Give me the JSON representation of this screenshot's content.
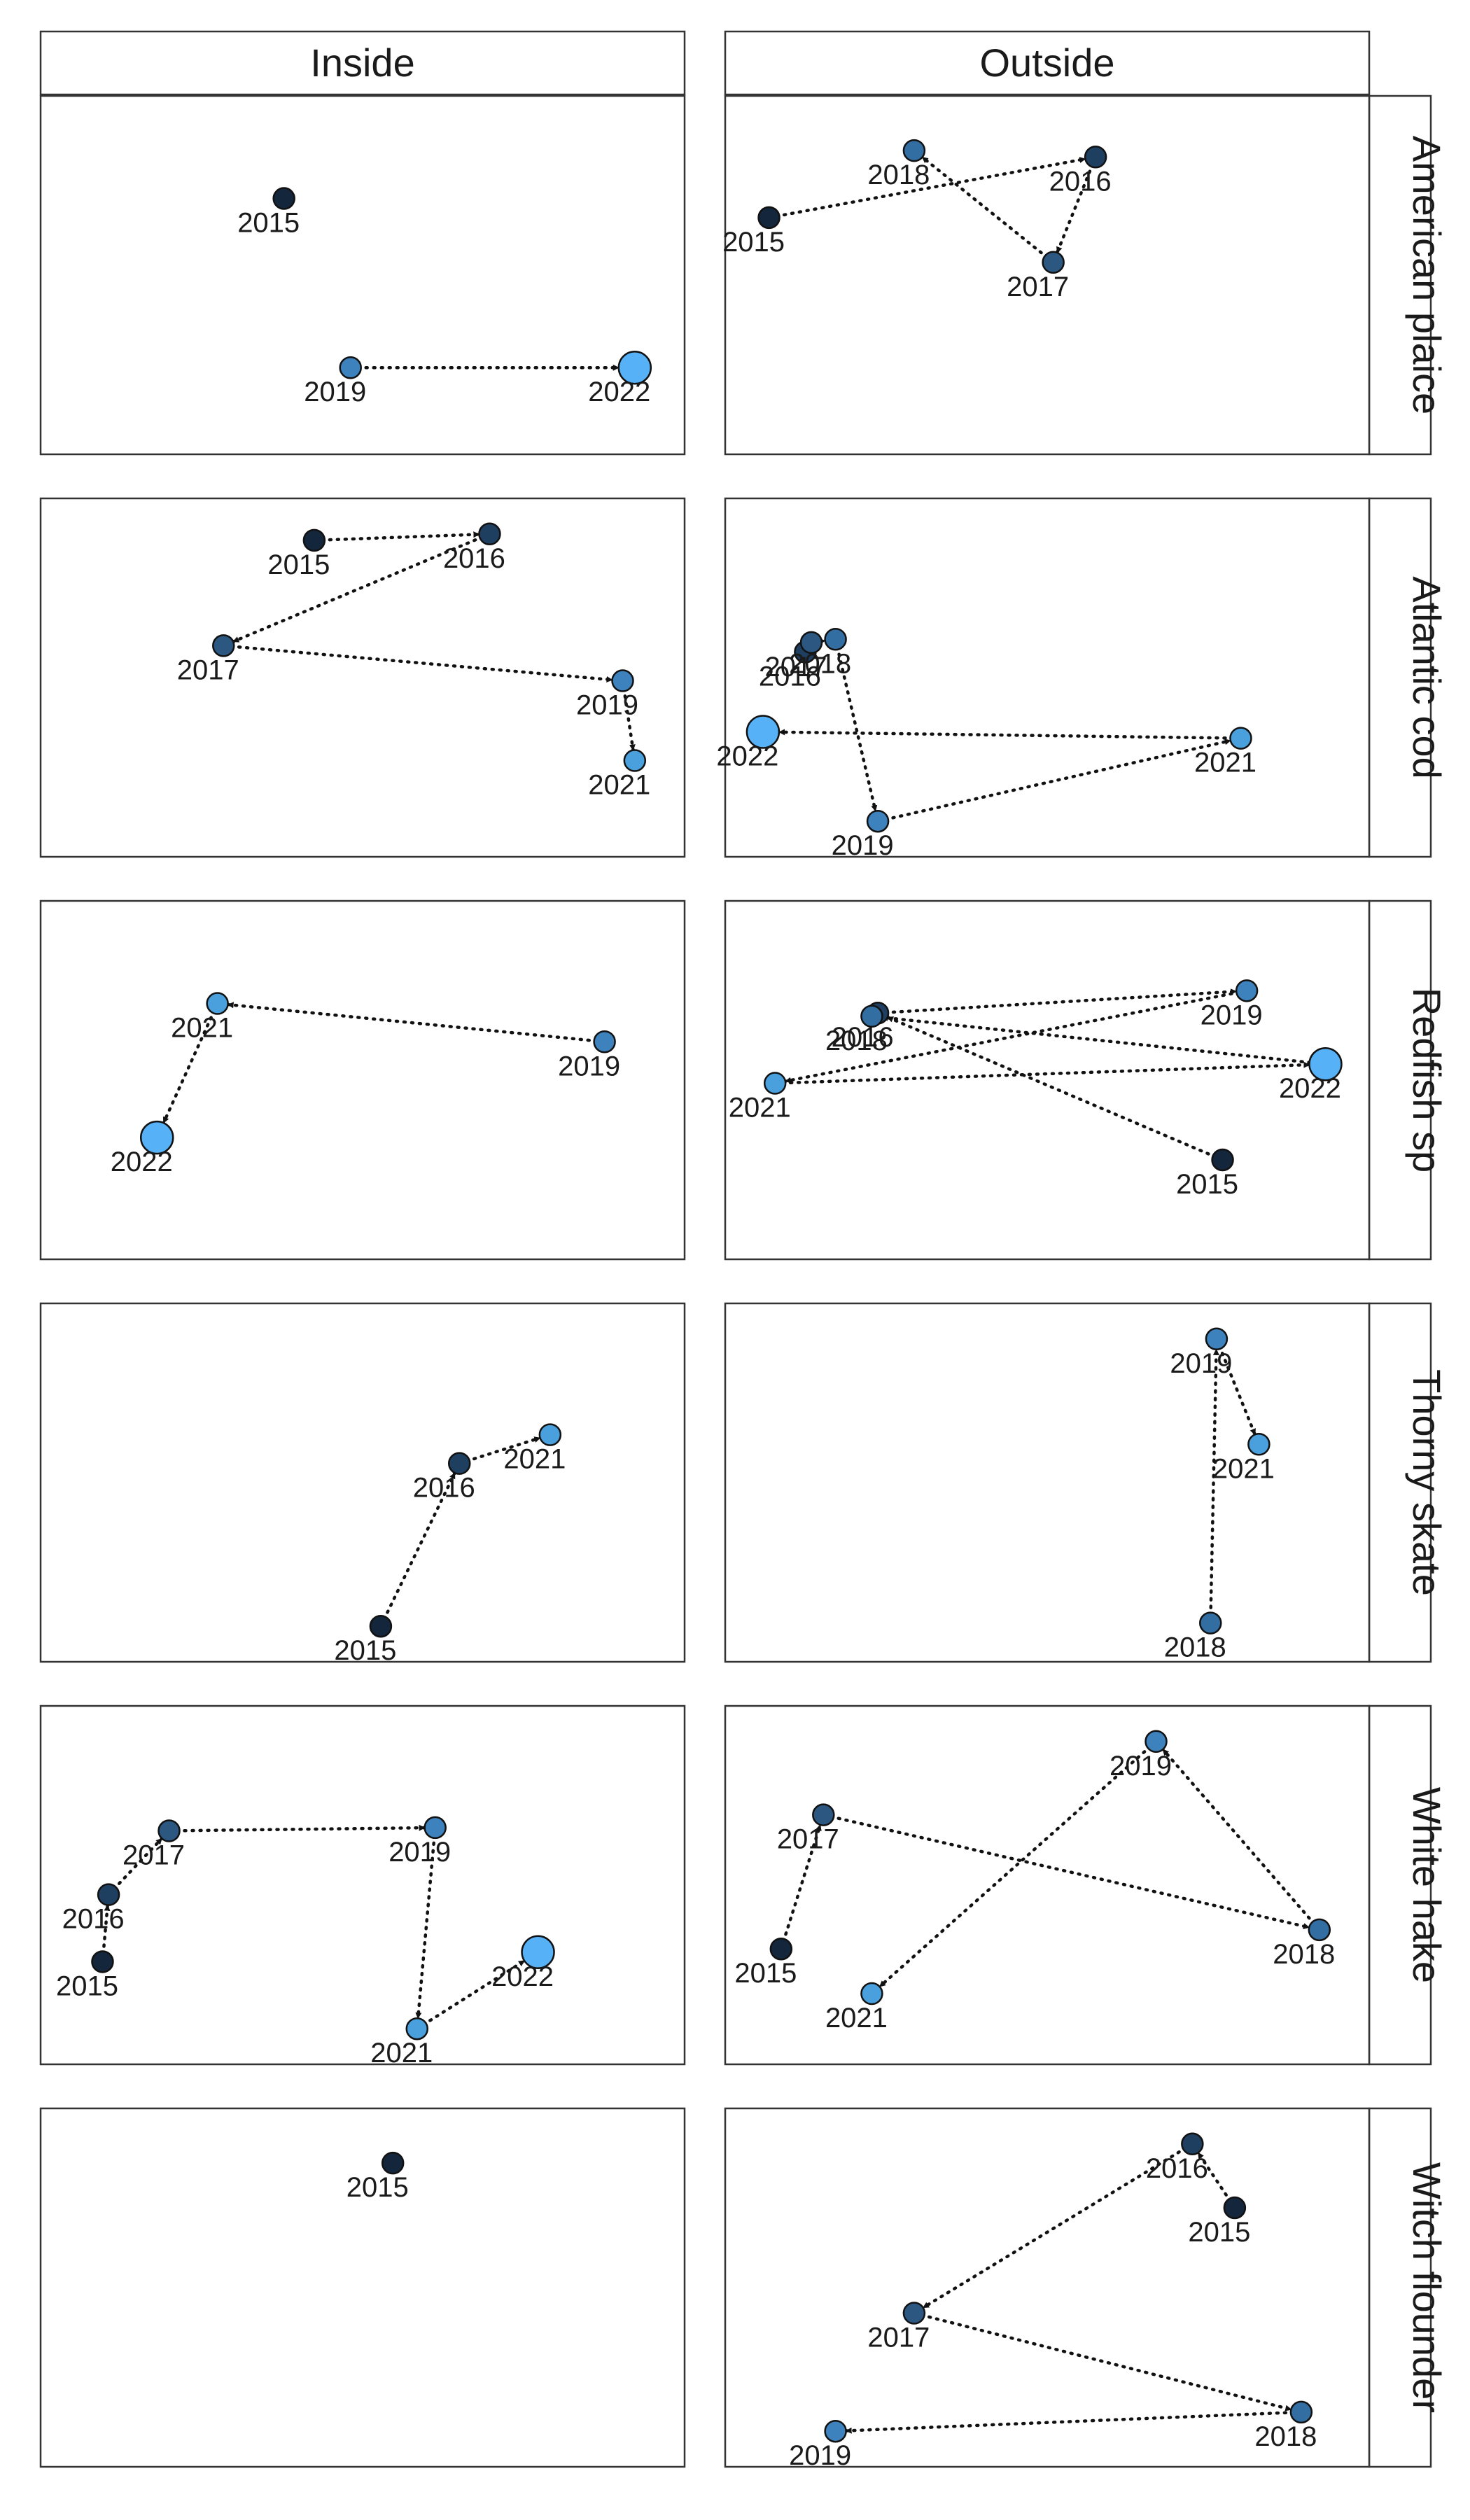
{
  "chart_data": {
    "type": "scatter",
    "facet_columns": [
      "Inside",
      "Outside"
    ],
    "facet_rows": [
      "American plaice",
      "Atlantic cod",
      "Redfish sp",
      "Thorny skate",
      "White hake",
      "Witch flounder"
    ],
    "year_colors": {
      "2015": "#13263b",
      "2016": "#1f3f61",
      "2017": "#2b5781",
      "2018": "#336ea3",
      "2019": "#3d82bd",
      "2021": "#4aa0dc",
      "2022": "#56b1f7"
    },
    "panels": [
      {
        "row": "American plaice",
        "col": "Inside",
        "points": [
          {
            "year": "2015",
            "x": 0.37,
            "y": 0.74
          },
          {
            "year": "2019",
            "x": 0.48,
            "y": 0.21
          },
          {
            "year": "2022",
            "x": 0.95,
            "y": 0.21
          }
        ],
        "paths": [
          [
            "2019",
            "2022"
          ]
        ]
      },
      {
        "row": "American plaice",
        "col": "Outside",
        "points": [
          {
            "year": "2015",
            "x": 0.04,
            "y": 0.68
          },
          {
            "year": "2016",
            "x": 0.58,
            "y": 0.87
          },
          {
            "year": "2017",
            "x": 0.51,
            "y": 0.54
          },
          {
            "year": "2018",
            "x": 0.28,
            "y": 0.89
          }
        ],
        "paths": [
          [
            "2015",
            "2016"
          ],
          [
            "2016",
            "2017"
          ],
          [
            "2017",
            "2018"
          ]
        ]
      },
      {
        "row": "Atlantic cod",
        "col": "Inside",
        "points": [
          {
            "year": "2015",
            "x": 0.42,
            "y": 0.93
          },
          {
            "year": "2016",
            "x": 0.71,
            "y": 0.95
          },
          {
            "year": "2017",
            "x": 0.27,
            "y": 0.6
          },
          {
            "year": "2019",
            "x": 0.93,
            "y": 0.49
          },
          {
            "year": "2021",
            "x": 0.95,
            "y": 0.24
          }
        ],
        "paths": [
          [
            "2015",
            "2016"
          ],
          [
            "2016",
            "2017"
          ],
          [
            "2017",
            "2019"
          ],
          [
            "2019",
            "2021"
          ]
        ]
      },
      {
        "row": "Atlantic cod",
        "col": "Outside",
        "points": [
          {
            "year": "2016",
            "x": 0.1,
            "y": 0.58
          },
          {
            "year": "2017",
            "x": 0.11,
            "y": 0.61
          },
          {
            "year": "2018",
            "x": 0.15,
            "y": 0.62
          },
          {
            "year": "2019",
            "x": 0.22,
            "y": 0.05
          },
          {
            "year": "2021",
            "x": 0.82,
            "y": 0.31
          },
          {
            "year": "2022",
            "x": 0.03,
            "y": 0.33
          }
        ],
        "paths": [
          [
            "2016",
            "2017"
          ],
          [
            "2017",
            "2018"
          ],
          [
            "2018",
            "2019"
          ],
          [
            "2019",
            "2021"
          ],
          [
            "2021",
            "2022"
          ]
        ]
      },
      {
        "row": "Redfish sp",
        "col": "Inside",
        "points": [
          {
            "year": "2019",
            "x": 0.9,
            "y": 0.62
          },
          {
            "year": "2021",
            "x": 0.26,
            "y": 0.74
          },
          {
            "year": "2022",
            "x": 0.16,
            "y": 0.32
          }
        ],
        "paths": [
          [
            "2019",
            "2021"
          ],
          [
            "2021",
            "2022"
          ]
        ]
      },
      {
        "row": "Redfish sp",
        "col": "Outside",
        "points": [
          {
            "year": "2015",
            "x": 0.79,
            "y": 0.25
          },
          {
            "year": "2016",
            "x": 0.22,
            "y": 0.71
          },
          {
            "year": "2018",
            "x": 0.21,
            "y": 0.7
          },
          {
            "year": "2019",
            "x": 0.83,
            "y": 0.78
          },
          {
            "year": "2021",
            "x": 0.05,
            "y": 0.49
          },
          {
            "year": "2022",
            "x": 0.96,
            "y": 0.55
          }
        ],
        "paths": [
          [
            "2015",
            "2016"
          ],
          [
            "2016",
            "2019"
          ],
          [
            "2019",
            "2021"
          ],
          [
            "2021",
            "2022"
          ],
          [
            "2022",
            "2018"
          ]
        ]
      },
      {
        "row": "Thorny skate",
        "col": "Inside",
        "points": [
          {
            "year": "2015",
            "x": 0.53,
            "y": 0.05
          },
          {
            "year": "2016",
            "x": 0.66,
            "y": 0.56
          },
          {
            "year": "2021",
            "x": 0.81,
            "y": 0.65
          }
        ],
        "paths": [
          [
            "2015",
            "2016"
          ],
          [
            "2016",
            "2021"
          ]
        ]
      },
      {
        "row": "Thorny skate",
        "col": "Outside",
        "points": [
          {
            "year": "2018",
            "x": 0.77,
            "y": 0.06
          },
          {
            "year": "2019",
            "x": 0.78,
            "y": 0.95
          },
          {
            "year": "2021",
            "x": 0.85,
            "y": 0.62
          }
        ],
        "paths": [
          [
            "2018",
            "2019"
          ],
          [
            "2019",
            "2021"
          ]
        ]
      },
      {
        "row": "White hake",
        "col": "Inside",
        "points": [
          {
            "year": "2015",
            "x": 0.07,
            "y": 0.26
          },
          {
            "year": "2016",
            "x": 0.08,
            "y": 0.47
          },
          {
            "year": "2017",
            "x": 0.18,
            "y": 0.67
          },
          {
            "year": "2019",
            "x": 0.62,
            "y": 0.68
          },
          {
            "year": "2021",
            "x": 0.59,
            "y": 0.05
          },
          {
            "year": "2022",
            "x": 0.79,
            "y": 0.29
          }
        ],
        "paths": [
          [
            "2015",
            "2016"
          ],
          [
            "2016",
            "2017"
          ],
          [
            "2017",
            "2019"
          ],
          [
            "2019",
            "2021"
          ],
          [
            "2021",
            "2022"
          ]
        ]
      },
      {
        "row": "White hake",
        "col": "Outside",
        "points": [
          {
            "year": "2015",
            "x": 0.06,
            "y": 0.3
          },
          {
            "year": "2017",
            "x": 0.13,
            "y": 0.72
          },
          {
            "year": "2018",
            "x": 0.95,
            "y": 0.36
          },
          {
            "year": "2019",
            "x": 0.68,
            "y": 0.95
          },
          {
            "year": "2021",
            "x": 0.21,
            "y": 0.16
          }
        ],
        "paths": [
          [
            "2015",
            "2017"
          ],
          [
            "2017",
            "2018"
          ],
          [
            "2018",
            "2019"
          ],
          [
            "2019",
            "2021"
          ]
        ]
      },
      {
        "row": "Witch flounder",
        "col": "Inside",
        "points": [
          {
            "year": "2015",
            "x": 0.55,
            "y": 0.89
          }
        ],
        "paths": []
      },
      {
        "row": "Witch flounder",
        "col": "Outside",
        "points": [
          {
            "year": "2015",
            "x": 0.81,
            "y": 0.75
          },
          {
            "year": "2016",
            "x": 0.74,
            "y": 0.95
          },
          {
            "year": "2017",
            "x": 0.28,
            "y": 0.42
          },
          {
            "year": "2018",
            "x": 0.92,
            "y": 0.11
          },
          {
            "year": "2019",
            "x": 0.15,
            "y": 0.05
          }
        ],
        "paths": [
          [
            "2015",
            "2016"
          ],
          [
            "2016",
            "2017"
          ],
          [
            "2017",
            "2018"
          ],
          [
            "2018",
            "2019"
          ]
        ]
      }
    ]
  }
}
